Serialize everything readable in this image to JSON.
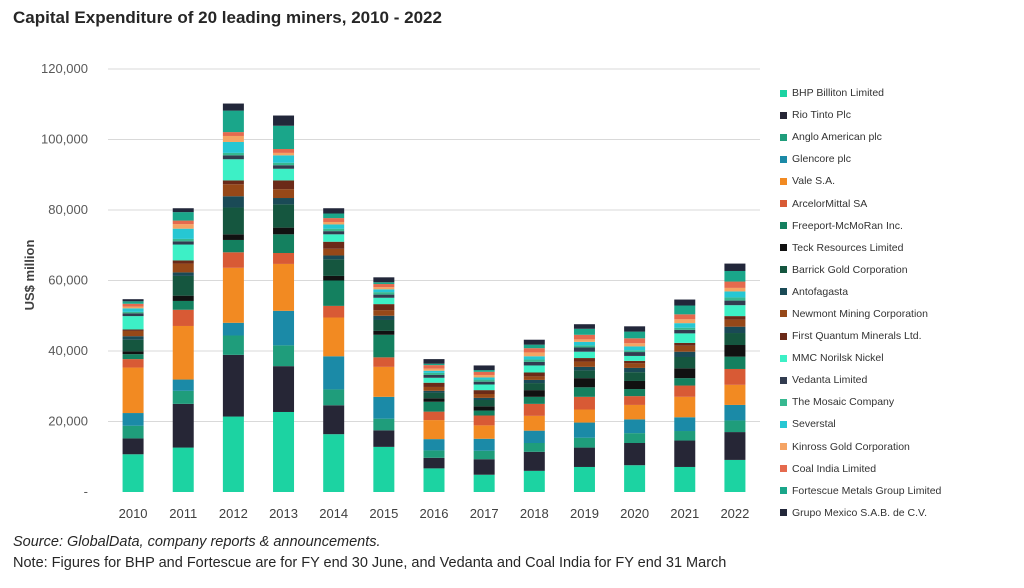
{
  "title": "Capital Expenditure of 20 leading miners, 2010 - 2022",
  "source": "Source: GlobalData, company reports & announcements.",
  "note": "Note: Figures for BHP and Fortescue are for FY end 30 June, and Vedanta and Coal India for FY end 31 March",
  "chart_data": {
    "type": "bar",
    "stacked": true,
    "title": "Capital Expenditure of 20 leading miners, 2010 - 2022",
    "ylabel": "US$ million",
    "xlabel": "",
    "ylim": [
      0,
      120000
    ],
    "yticks": [
      {
        "value": 0,
        "label": "-"
      },
      {
        "value": 20000,
        "label": "20,000"
      },
      {
        "value": 40000,
        "label": "40,000"
      },
      {
        "value": 60000,
        "label": "60,000"
      },
      {
        "value": 80000,
        "label": "80,000"
      },
      {
        "value": 100000,
        "label": "100,000"
      },
      {
        "value": 120000,
        "label": "120,000"
      }
    ],
    "grid": "horizontal",
    "legend_position": "right",
    "categories": [
      "2010",
      "2011",
      "2012",
      "2013",
      "2014",
      "2015",
      "2016",
      "2017",
      "2018",
      "2019",
      "2020",
      "2021",
      "2022"
    ],
    "series": [
      {
        "name": "BHP Billiton Limited",
        "color": "#1cd3a2",
        "values": [
          10700,
          12600,
          21400,
          22700,
          16400,
          12800,
          6700,
          4900,
          6000,
          7100,
          7600,
          7100,
          9100
        ]
      },
      {
        "name": "Rio Tinto Plc",
        "color": "#262636",
        "values": [
          4500,
          12400,
          17500,
          13000,
          8200,
          4700,
          3000,
          4400,
          5400,
          5500,
          6300,
          7500,
          7900
        ]
      },
      {
        "name": "Anglo American plc",
        "color": "#1f9d7b",
        "values": [
          3600,
          3700,
          5500,
          5900,
          4500,
          3300,
          2100,
          2400,
          2500,
          2800,
          2800,
          2700,
          3300
        ]
      },
      {
        "name": "Glencore plc",
        "color": "#1b8aa7",
        "values": [
          3600,
          3200,
          3600,
          9800,
          9400,
          6200,
          3200,
          3400,
          3500,
          4300,
          3900,
          3900,
          4400
        ]
      },
      {
        "name": "Vale S.A.",
        "color": "#f28a22",
        "values": [
          12900,
          15200,
          15600,
          13300,
          11000,
          8500,
          5400,
          3800,
          4200,
          3700,
          4100,
          5800,
          5700
        ]
      },
      {
        "name": "ArcelorMittal SA",
        "color": "#d85a35",
        "values": [
          2400,
          4600,
          4400,
          3100,
          3300,
          2700,
          2400,
          2800,
          3400,
          3600,
          2500,
          3200,
          4500
        ]
      },
      {
        "name": "Freeport-McMoRan Inc.",
        "color": "#14805f",
        "values": [
          1400,
          2500,
          3500,
          5300,
          7200,
          6400,
          2800,
          1400,
          2000,
          2700,
          2000,
          2100,
          3500
        ]
      },
      {
        "name": "Teck Resources Limited",
        "color": "#111111",
        "values": [
          800,
          1500,
          1600,
          1900,
          1300,
          1100,
          1000,
          1200,
          1900,
          2600,
          2300,
          2800,
          3300
        ]
      },
      {
        "name": "Barrick Gold Corporation",
        "color": "#15563f",
        "values": [
          3300,
          5600,
          7600,
          6600,
          4700,
          3100,
          1600,
          1800,
          2000,
          2200,
          2500,
          3200,
          3400
        ]
      },
      {
        "name": "Antofagasta",
        "color": "#1a4a56",
        "values": [
          1000,
          1000,
          3200,
          1800,
          1100,
          1200,
          500,
          600,
          900,
          1000,
          1200,
          1500,
          1800
        ]
      },
      {
        "name": "Newmont Mining Corporation",
        "color": "#964818",
        "values": [
          1500,
          2500,
          3400,
          2500,
          1900,
          1600,
          1100,
          1100,
          1000,
          1500,
          1300,
          1700,
          2000
        ]
      },
      {
        "name": "First Quantum Minerals Ltd.",
        "color": "#6b2a18",
        "values": [
          400,
          900,
          1100,
          2500,
          2000,
          1700,
          1200,
          1100,
          1100,
          1000,
          700,
          800,
          1000
        ]
      },
      {
        "name": "MMC Norilsk Nickel",
        "color": "#3df0c6",
        "values": [
          3800,
          4500,
          6000,
          3300,
          2100,
          1800,
          1400,
          1600,
          2000,
          1800,
          1400,
          2700,
          3100
        ]
      },
      {
        "name": "Vedanta Limited",
        "color": "#323c50",
        "values": [
          800,
          900,
          1100,
          1000,
          900,
          900,
          800,
          800,
          1000,
          1200,
          1100,
          1000,
          1300
        ]
      },
      {
        "name": "The Mosaic Company",
        "color": "#37b890",
        "values": [
          400,
          700,
          700,
          700,
          700,
          700,
          600,
          600,
          700,
          600,
          500,
          600,
          900
        ]
      },
      {
        "name": "Severstal",
        "color": "#26c7d3",
        "values": [
          1000,
          2900,
          3100,
          2100,
          1200,
          800,
          600,
          600,
          900,
          1000,
          1100,
          1300,
          1700
        ]
      },
      {
        "name": "Kinross Gold Corporation",
        "color": "#f5a464",
        "values": [
          500,
          1300,
          1700,
          700,
          700,
          600,
          600,
          700,
          1100,
          700,
          900,
          1100,
          1000
        ]
      },
      {
        "name": "Coal India Limited",
        "color": "#e56a4e",
        "values": [
          800,
          1000,
          1100,
          1100,
          1100,
          900,
          1000,
          900,
          1200,
          1300,
          1400,
          1400,
          1800
        ]
      },
      {
        "name": "Fortescue Metals Group Limited",
        "color": "#1aa68a",
        "values": [
          700,
          2400,
          6100,
          6600,
          1300,
          500,
          400,
          500,
          1000,
          1700,
          1900,
          2500,
          3000
        ]
      },
      {
        "name": "Grupo Mexico S.A.B. de C.V.",
        "color": "#22273a",
        "values": [
          600,
          1100,
          2000,
          2900,
          1500,
          1400,
          1300,
          1300,
          1400,
          1300,
          1500,
          1700,
          2100
        ]
      }
    ]
  }
}
